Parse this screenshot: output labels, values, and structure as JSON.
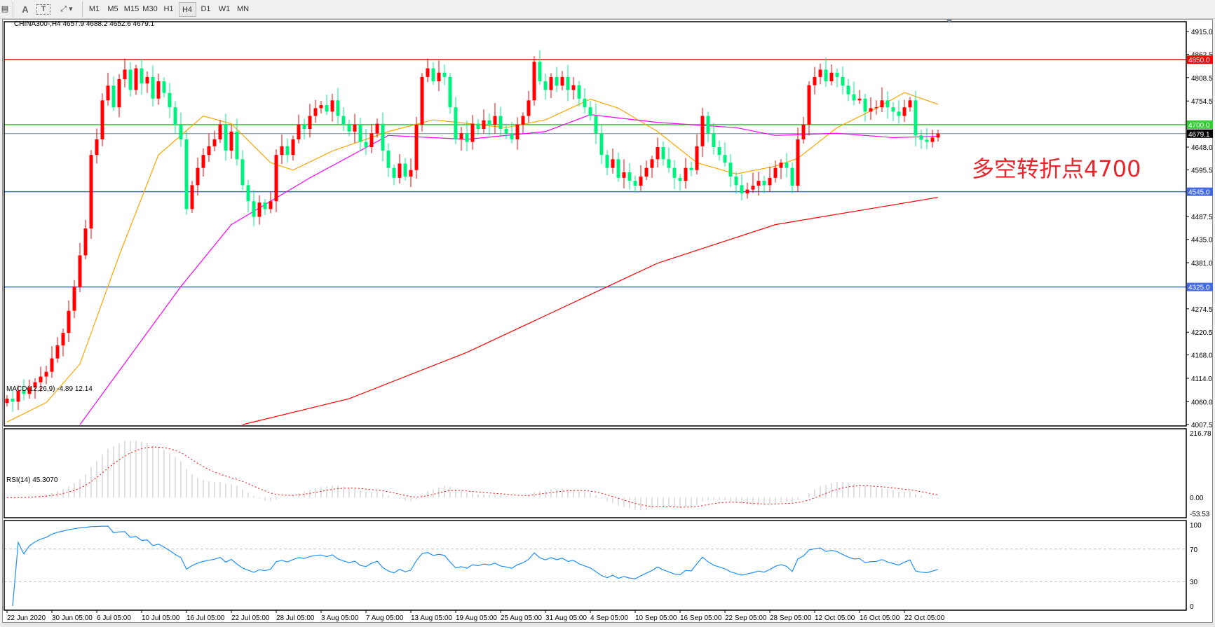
{
  "toolbar": {
    "tools": [
      "A",
      "T"
    ],
    "timeframes": [
      "M1",
      "M5",
      "M15",
      "M30",
      "H1",
      "H4",
      "D1",
      "W1",
      "MN"
    ],
    "active": "H4"
  },
  "chart": {
    "header": "CHINA300-,H4  4657.9 4688.2 4652.6 4679.1",
    "annotation": "多空转折点4700",
    "price_ticks": [
      "4915.0",
      "4862.5",
      "4808.5",
      "4754.5",
      "4648.0",
      "4595.5",
      "4487.5",
      "4435.0",
      "4381.0",
      "4274.5",
      "4220.5",
      "4168.0",
      "4114.0",
      "4060.0",
      "4007.5"
    ],
    "price_range": [
      4007.5,
      4915.0
    ],
    "levels": [
      {
        "price": 4850.0,
        "label": "4850.0",
        "color": "#ff0000"
      },
      {
        "price": 4700.0,
        "label": "4700.0",
        "color": "#32cd32"
      },
      {
        "price": 4545.0,
        "label": "4545.0",
        "color": "#4169e1"
      },
      {
        "price": 4325.0,
        "label": "4325.0",
        "color": "#4169e1"
      }
    ],
    "current_price": {
      "price": 4679.1,
      "label": "4679.1",
      "color": "#778899"
    },
    "colors": {
      "up": "#ff0000",
      "down": "#00f080",
      "ma_fast": "#ffa500",
      "ma_mid": "#ff00ff",
      "ma_slow": "#ff0000"
    },
    "closes": [
      4067,
      4060,
      4085,
      4078,
      4093,
      4105,
      4118,
      4129,
      4160,
      4190,
      4219,
      4270,
      4326,
      4398,
      4460,
      4630,
      4666,
      4756,
      4790,
      4740,
      4805,
      4827,
      4780,
      4830,
      4795,
      4810,
      4760,
      4800,
      4773,
      4740,
      4700,
      4666,
      4505,
      4560,
      4600,
      4630,
      4650,
      4666,
      4700,
      4640,
      4684,
      4620,
      4560,
      4523,
      4487,
      4520,
      4505,
      4523,
      4630,
      4650,
      4630,
      4666,
      4700,
      4690,
      4720,
      4738,
      4745,
      4730,
      4756,
      4720,
      4700,
      4684,
      4700,
      4660,
      4648,
      4680,
      4702,
      4640,
      4600,
      4577,
      4610,
      4580,
      4595,
      4700,
      4810,
      4830,
      4800,
      4820,
      4810,
      4740,
      4666,
      4680,
      4660,
      4702,
      4690,
      4710,
      4700,
      4720,
      4690,
      4680,
      4666,
      4700,
      4720,
      4756,
      4845,
      4800,
      4780,
      4810,
      4790,
      4810,
      4780,
      4791,
      4760,
      4740,
      4720,
      4680,
      4630,
      4600,
      4620,
      4577,
      4590,
      4570,
      4559,
      4580,
      4600,
      4620,
      4648,
      4620,
      4600,
      4577,
      4570,
      4600,
      4595,
      4650,
      4720,
      4680,
      4648,
      4630,
      4612,
      4580,
      4560,
      4541,
      4550,
      4559,
      4570,
      4560,
      4577,
      4600,
      4612,
      4600,
      4559,
      4666,
      4700,
      4791,
      4810,
      4827,
      4800,
      4820,
      4810,
      4790,
      4770,
      4756,
      4760,
      4730,
      4738,
      4740,
      4756,
      4740,
      4730,
      4720,
      4740,
      4756,
      4675,
      4665,
      4660,
      4670,
      4679.1
    ],
    "ma_fast": [
      [
        0,
        4013
      ],
      [
        7,
        4058
      ],
      [
        13,
        4147
      ],
      [
        20,
        4398
      ],
      [
        27,
        4630
      ],
      [
        35,
        4720
      ],
      [
        40,
        4702
      ],
      [
        47,
        4612
      ],
      [
        51,
        4595
      ],
      [
        58,
        4639
      ],
      [
        68,
        4684
      ],
      [
        76,
        4711
      ],
      [
        89,
        4693
      ],
      [
        96,
        4711
      ],
      [
        104,
        4759
      ],
      [
        109,
        4738
      ],
      [
        116,
        4684
      ],
      [
        123,
        4612
      ],
      [
        130,
        4586
      ],
      [
        137,
        4604
      ],
      [
        141,
        4622
      ],
      [
        148,
        4693
      ],
      [
        155,
        4738
      ],
      [
        160,
        4774
      ],
      [
        166,
        4747
      ]
    ],
    "ma_mid": [
      [
        13,
        4007
      ],
      [
        31,
        4326
      ],
      [
        40,
        4469
      ],
      [
        54,
        4577
      ],
      [
        68,
        4675
      ],
      [
        82,
        4666
      ],
      [
        96,
        4684
      ],
      [
        104,
        4723
      ],
      [
        116,
        4705
      ],
      [
        130,
        4693
      ],
      [
        137,
        4675
      ],
      [
        148,
        4680
      ],
      [
        158,
        4670
      ],
      [
        166,
        4673
      ]
    ],
    "ma_slow": [
      [
        42,
        4007
      ],
      [
        61,
        4067
      ],
      [
        82,
        4174
      ],
      [
        116,
        4380
      ],
      [
        137,
        4469
      ],
      [
        166,
        4532
      ]
    ]
  },
  "macd": {
    "label": "MACD(12,26,9) -4.89 12.14",
    "ticks": [
      "216.78",
      "0.00",
      "-53.53"
    ],
    "range": [
      -53.53,
      216.78
    ]
  },
  "rsi": {
    "label": "RSI(14) 45.3070",
    "ticks": [
      "100",
      "70",
      "30",
      "0"
    ],
    "levels": [
      70,
      30
    ]
  },
  "time_axis": [
    "22 Jun 2020",
    "30 Jun 05:00",
    "6 Jul 05:00",
    "10 Jul 05:00",
    "16 Jul 05:00",
    "22 Jul 05:00",
    "28 Jul 05:00",
    "3 Aug 05:00",
    "7 Aug 05:00",
    "13 Aug 05:00",
    "19 Aug 05:00",
    "25 Aug 05:00",
    "31 Aug 05:00",
    "4 Sep 05:00",
    "10 Sep 05:00",
    "16 Sep 05:00",
    "22 Sep 05:00",
    "28 Sep 05:00",
    "12 Oct 05:00",
    "16 Oct 05:00",
    "22 Oct 05:00"
  ]
}
